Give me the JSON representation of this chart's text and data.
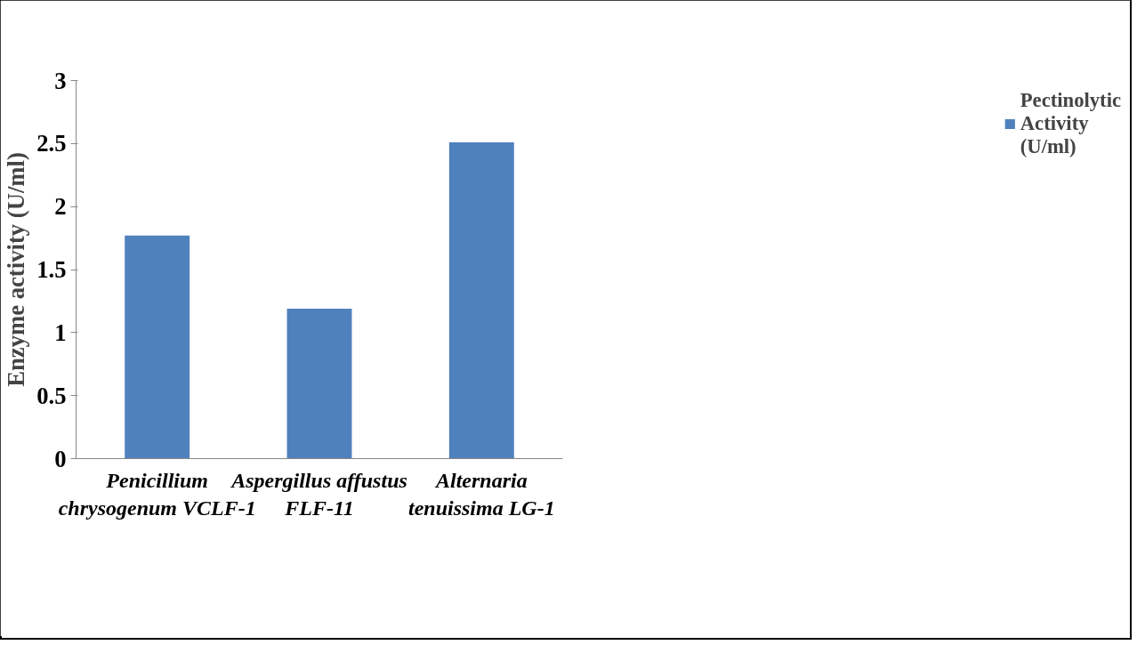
{
  "chart_data": {
    "type": "bar",
    "ylabel": "Enzyme activity (U/ml)",
    "categories": [
      "Penicillium chrysogenum VCLF-1",
      "Aspergillus affustus FLF-11",
      "Alternaria tenuissima LG-1"
    ],
    "series": [
      {
        "name": "Pectinolytic Activity (U/ml)",
        "color": "#4f81bd",
        "values": [
          1.77,
          1.19,
          2.51
        ]
      }
    ],
    "ylim": [
      0,
      3
    ],
    "yticks": [
      0,
      0.5,
      1,
      1.5,
      2,
      2.5,
      3
    ],
    "grid": false,
    "legend": "right"
  }
}
